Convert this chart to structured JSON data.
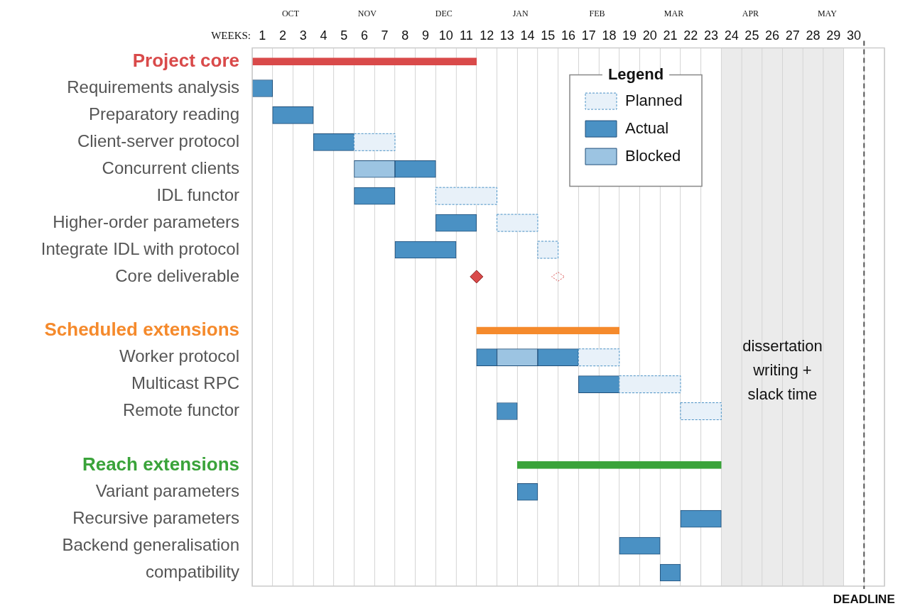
{
  "chart_data": {
    "type": "bar",
    "orientation": "horizontal",
    "categories": [
      "Project core",
      "Requirements analysis",
      "Preparatory reading",
      "Client-server protocol",
      "Concurrent clients",
      "IDL functor",
      "Higher-order parameters",
      "Integrate IDL with protocol",
      "Core deliverable",
      null,
      "Scheduled extensions",
      "Worker protocol",
      "Multicast RPC",
      "Remote functor",
      null,
      "Reach extensions",
      "Variant parameters",
      "Recursive parameters",
      "Backend generalisation",
      "compatibility"
    ],
    "series": [
      {
        "colors": [
          "#d94a4a",
          null,
          null,
          null,
          null,
          null,
          null,
          null,
          null,
          null,
          "#f58a2c",
          null,
          null,
          null,
          null,
          "#3aa33a",
          null,
          null,
          null,
          null
        ],
        "base": [
          0.5,
          null,
          null,
          null,
          null,
          null,
          null,
          null,
          null,
          null,
          11.5,
          null,
          null,
          null,
          null,
          13.5,
          null,
          null,
          null,
          null
        ],
        "values": [
          11,
          null,
          null,
          null,
          null,
          null,
          null,
          null,
          null,
          null,
          7,
          null,
          null,
          null,
          null,
          10,
          null,
          null,
          null,
          null
        ]
      },
      {
        "name": "Planned",
        "color": "#e8f1f9",
        "line_style": "dashed",
        "base": [
          null,
          null,
          null,
          5.5,
          null,
          9.5,
          12.5,
          14.5,
          null,
          null,
          null,
          16.5,
          18.5,
          21.5,
          null,
          null,
          null,
          null,
          null,
          null
        ],
        "values": [
          null,
          null,
          null,
          2,
          null,
          3,
          2,
          1,
          null,
          null,
          null,
          2,
          3,
          2,
          null,
          null,
          null,
          null,
          null,
          null
        ]
      },
      {
        "name": "Actual",
        "color": "#4a91c4",
        "base": [
          null,
          0.5,
          1.5,
          3.5,
          7.5,
          5.5,
          9.5,
          7.5,
          null,
          null,
          null,
          11.5,
          16.5,
          12.5,
          null,
          null,
          13.5,
          21.5,
          18.5,
          20.5
        ],
        "values": [
          null,
          1,
          2,
          2,
          2,
          2,
          2,
          3,
          null,
          null,
          null,
          1,
          2,
          1,
          null,
          null,
          1,
          2,
          2,
          1
        ]
      },
      {
        "color": "#4a91c4",
        "base": [
          null,
          null,
          null,
          null,
          null,
          null,
          null,
          null,
          null,
          null,
          null,
          14.5,
          null,
          null,
          null,
          null,
          null,
          null,
          null,
          null
        ],
        "values": [
          null,
          null,
          null,
          null,
          null,
          null,
          null,
          null,
          null,
          null,
          null,
          2,
          null,
          null,
          null,
          null,
          null,
          null,
          null,
          null
        ]
      },
      {
        "name": "Blocked",
        "color": "#9cc4e2",
        "base": [
          null,
          null,
          null,
          null,
          5.5,
          null,
          null,
          null,
          null,
          null,
          null,
          12.5,
          null,
          null,
          null,
          null,
          null,
          null,
          null,
          null
        ],
        "values": [
          null,
          null,
          null,
          null,
          2,
          null,
          null,
          null,
          null,
          null,
          null,
          2,
          null,
          null,
          null,
          null,
          null,
          null,
          null,
          null
        ]
      },
      {
        "type": "scatter",
        "marker": "diamond",
        "color": "#d94a4a",
        "values": [
          null,
          null,
          null,
          null,
          null,
          null,
          null,
          null,
          11.5,
          null,
          null,
          null,
          null,
          null,
          null,
          null,
          null,
          null,
          null,
          null
        ]
      },
      {
        "type": "scatter",
        "marker": "diamond",
        "line_style": "dashed",
        "color": "#d94a4a",
        "values": [
          null,
          null,
          null,
          null,
          null,
          null,
          null,
          null,
          15.5,
          null,
          null,
          null,
          null,
          null,
          null,
          null,
          null,
          null,
          null,
          null
        ]
      }
    ],
    "xlabel": "WEEKS:",
    "xlim": [
      0.5,
      31.5
    ],
    "xticks": [
      {
        "value": 0.5,
        "label": null
      },
      1,
      {
        "value": 1.5,
        "label": null
      },
      2,
      {
        "value": 2.5,
        "label": null
      },
      3,
      {
        "value": 3.5,
        "label": null
      },
      4,
      {
        "value": 4.5,
        "label": null
      },
      5,
      {
        "value": 5.5,
        "label": null
      },
      6,
      {
        "value": 6.5,
        "label": null
      },
      7,
      {
        "value": 7.5,
        "label": null
      },
      8,
      {
        "value": 8.5,
        "label": null
      },
      9,
      {
        "value": 9.5,
        "label": null
      },
      10,
      {
        "value": 10.5,
        "label": null
      },
      11,
      {
        "value": 11.5,
        "label": null
      },
      12,
      {
        "value": 12.5,
        "label": null
      },
      13,
      {
        "value": 13.5,
        "label": null
      },
      14,
      {
        "value": 14.5,
        "label": null
      },
      15,
      {
        "value": 15.5,
        "label": null
      },
      16,
      {
        "value": 16.5,
        "label": null
      },
      17,
      {
        "value": 17.5,
        "label": null
      },
      18,
      {
        "value": 18.5,
        "label": null
      },
      19,
      {
        "value": 19.5,
        "label": null
      },
      20,
      {
        "value": 20.5,
        "label": null
      },
      21,
      {
        "value": 21.5,
        "label": null
      },
      22,
      {
        "value": 22.5,
        "label": null
      },
      23,
      {
        "value": 23.5,
        "label": null
      },
      24,
      {
        "value": 24.5,
        "label": null
      },
      25,
      {
        "value": 25.5,
        "label": null
      },
      26,
      {
        "value": 26.5,
        "label": null
      },
      27,
      {
        "value": 27.5,
        "label": null
      },
      28,
      {
        "value": 28.5,
        "label": null
      },
      29,
      {
        "value": 29.5,
        "label": null
      },
      30,
      {
        "value": 30.5,
        "label": null
      },
      {
        "value": 31.5,
        "label": null
      }
    ],
    "annotations": [
      "OCT",
      "NOV",
      "DEC",
      "JAN",
      "FEB",
      "MAR",
      "APR",
      "MAY"
    ],
    "grid": "x",
    "legend": "top right",
    "legend_title": "Legend",
    "bands": [
      {
        "axis": "x",
        "from": 23.5,
        "to": 29.5,
        "label": "dissertation writing + slack time",
        "color": "#ebebeb"
      }
    ],
    "ref_lines": [
      {
        "axis": "x",
        "value": 30.5,
        "label": "DEADLINE",
        "line_style": "dashed",
        "color": "#555555"
      }
    ]
  }
}
